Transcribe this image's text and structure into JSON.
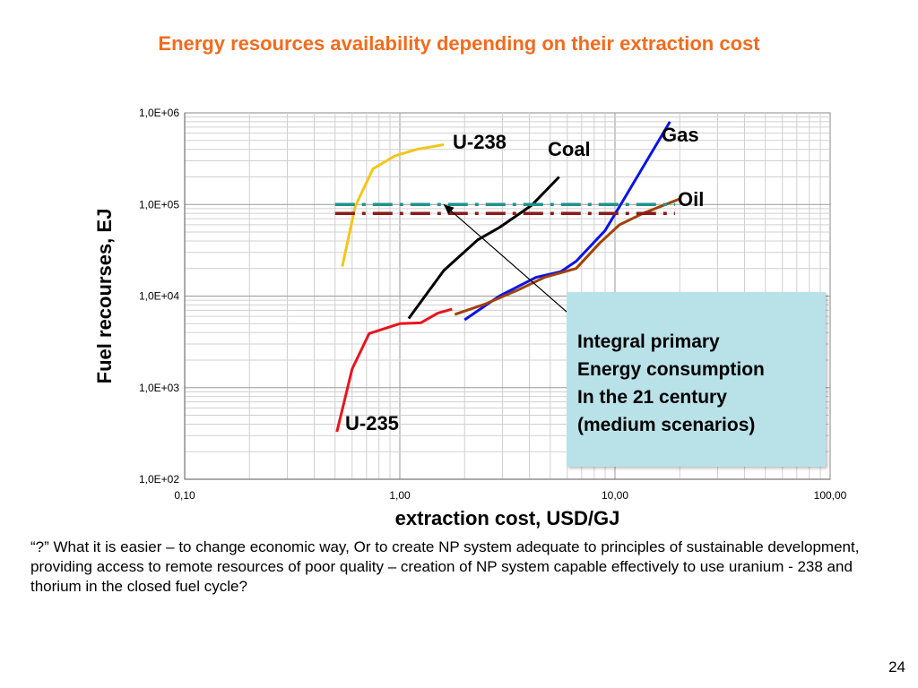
{
  "slide": {
    "title": "Energy resources availability depending on their extraction cost",
    "note": " “?” What it is easier – to change economic way, Or to create NP system adequate to principles of sustainable development, providing access to remote resources of poor quality – creation of NP system capable effectively to use uranium - 238 and thorium in the closed fuel cycle?",
    "page_number": "24"
  },
  "callout": {
    "lines": [
      "Integral primary",
      "Energy consumption",
      "In the 21 century",
      "(medium scenarios)"
    ]
  },
  "chart_data": {
    "type": "line",
    "xlabel": "extraction cost, USD/GJ",
    "ylabel": "Fuel recourses, EJ",
    "x_scale": "log",
    "y_scale": "log",
    "xlim": [
      0.1,
      100
    ],
    "ylim": [
      100,
      1000000
    ],
    "x_ticks": [
      0.1,
      1,
      10,
      100
    ],
    "x_tick_labels": [
      "0,10",
      "1,00",
      "10,00",
      "100,00"
    ],
    "y_ticks": [
      100,
      1000,
      10000,
      100000,
      1000000
    ],
    "y_tick_labels": [
      "1,0E+02",
      "1,0E+03",
      "1,0E+04",
      "1,0E+05",
      "1,0E+06"
    ],
    "grid": true,
    "series": [
      {
        "name": "U-238",
        "color": "#f5c518",
        "style": "solid",
        "points": [
          [
            0.54,
            21000
          ],
          [
            0.62,
            95000
          ],
          [
            0.75,
            245000
          ],
          [
            0.95,
            340000
          ],
          [
            1.2,
            400000
          ],
          [
            1.6,
            450000
          ]
        ]
      },
      {
        "name": "Coal",
        "color": "#000000",
        "style": "solid",
        "points": [
          [
            1.1,
            5700
          ],
          [
            1.6,
            19000
          ],
          [
            2.3,
            41000
          ],
          [
            2.9,
            56000
          ],
          [
            4.1,
            98000
          ],
          [
            5.5,
            200000
          ]
        ]
      },
      {
        "name": "Gas",
        "color": "#0a14e6",
        "style": "solid",
        "points": [
          [
            2.0,
            5500
          ],
          [
            2.9,
            10000
          ],
          [
            4.3,
            16000
          ],
          [
            5.6,
            18500
          ],
          [
            6.6,
            24000
          ],
          [
            9.0,
            52000
          ],
          [
            10.5,
            95000
          ],
          [
            18.0,
            800000
          ]
        ]
      },
      {
        "name": "Oil",
        "color": "#a0420a",
        "style": "solid",
        "points": [
          [
            1.8,
            6300
          ],
          [
            2.5,
            8200
          ],
          [
            3.5,
            11500
          ],
          [
            4.7,
            16000
          ],
          [
            6.6,
            20000
          ],
          [
            8.5,
            38000
          ],
          [
            10.5,
            60000
          ],
          [
            13.5,
            80000
          ],
          [
            20.0,
            115000
          ]
        ]
      },
      {
        "name": "U-235",
        "color": "#e8141e",
        "style": "solid",
        "points": [
          [
            0.51,
            330
          ],
          [
            0.6,
            1600
          ],
          [
            0.72,
            3900
          ],
          [
            1.0,
            5000
          ],
          [
            1.25,
            5100
          ],
          [
            1.5,
            6500
          ],
          [
            1.75,
            7200
          ]
        ]
      },
      {
        "name": "",
        "color": "#20928f",
        "style": "dash-dot",
        "points": [
          [
            0.5,
            100000
          ],
          [
            19.0,
            100000
          ]
        ]
      },
      {
        "name": "",
        "color": "#8b1a1a",
        "style": "dash-dot",
        "points": [
          [
            0.5,
            80000
          ],
          [
            19.0,
            80000
          ]
        ]
      }
    ],
    "annotations": [
      {
        "text": "Coal",
        "series": "Coal"
      },
      {
        "text": "Gas",
        "series": "Gas"
      },
      {
        "text": "Oil",
        "series": "Oil"
      },
      {
        "text": "U-238",
        "series": "U-238"
      },
      {
        "text": "U-235",
        "series": "U-235"
      }
    ],
    "arrow": {
      "from": [
        6.2,
        6200
      ],
      "to": [
        1.6,
        100000
      ]
    }
  }
}
